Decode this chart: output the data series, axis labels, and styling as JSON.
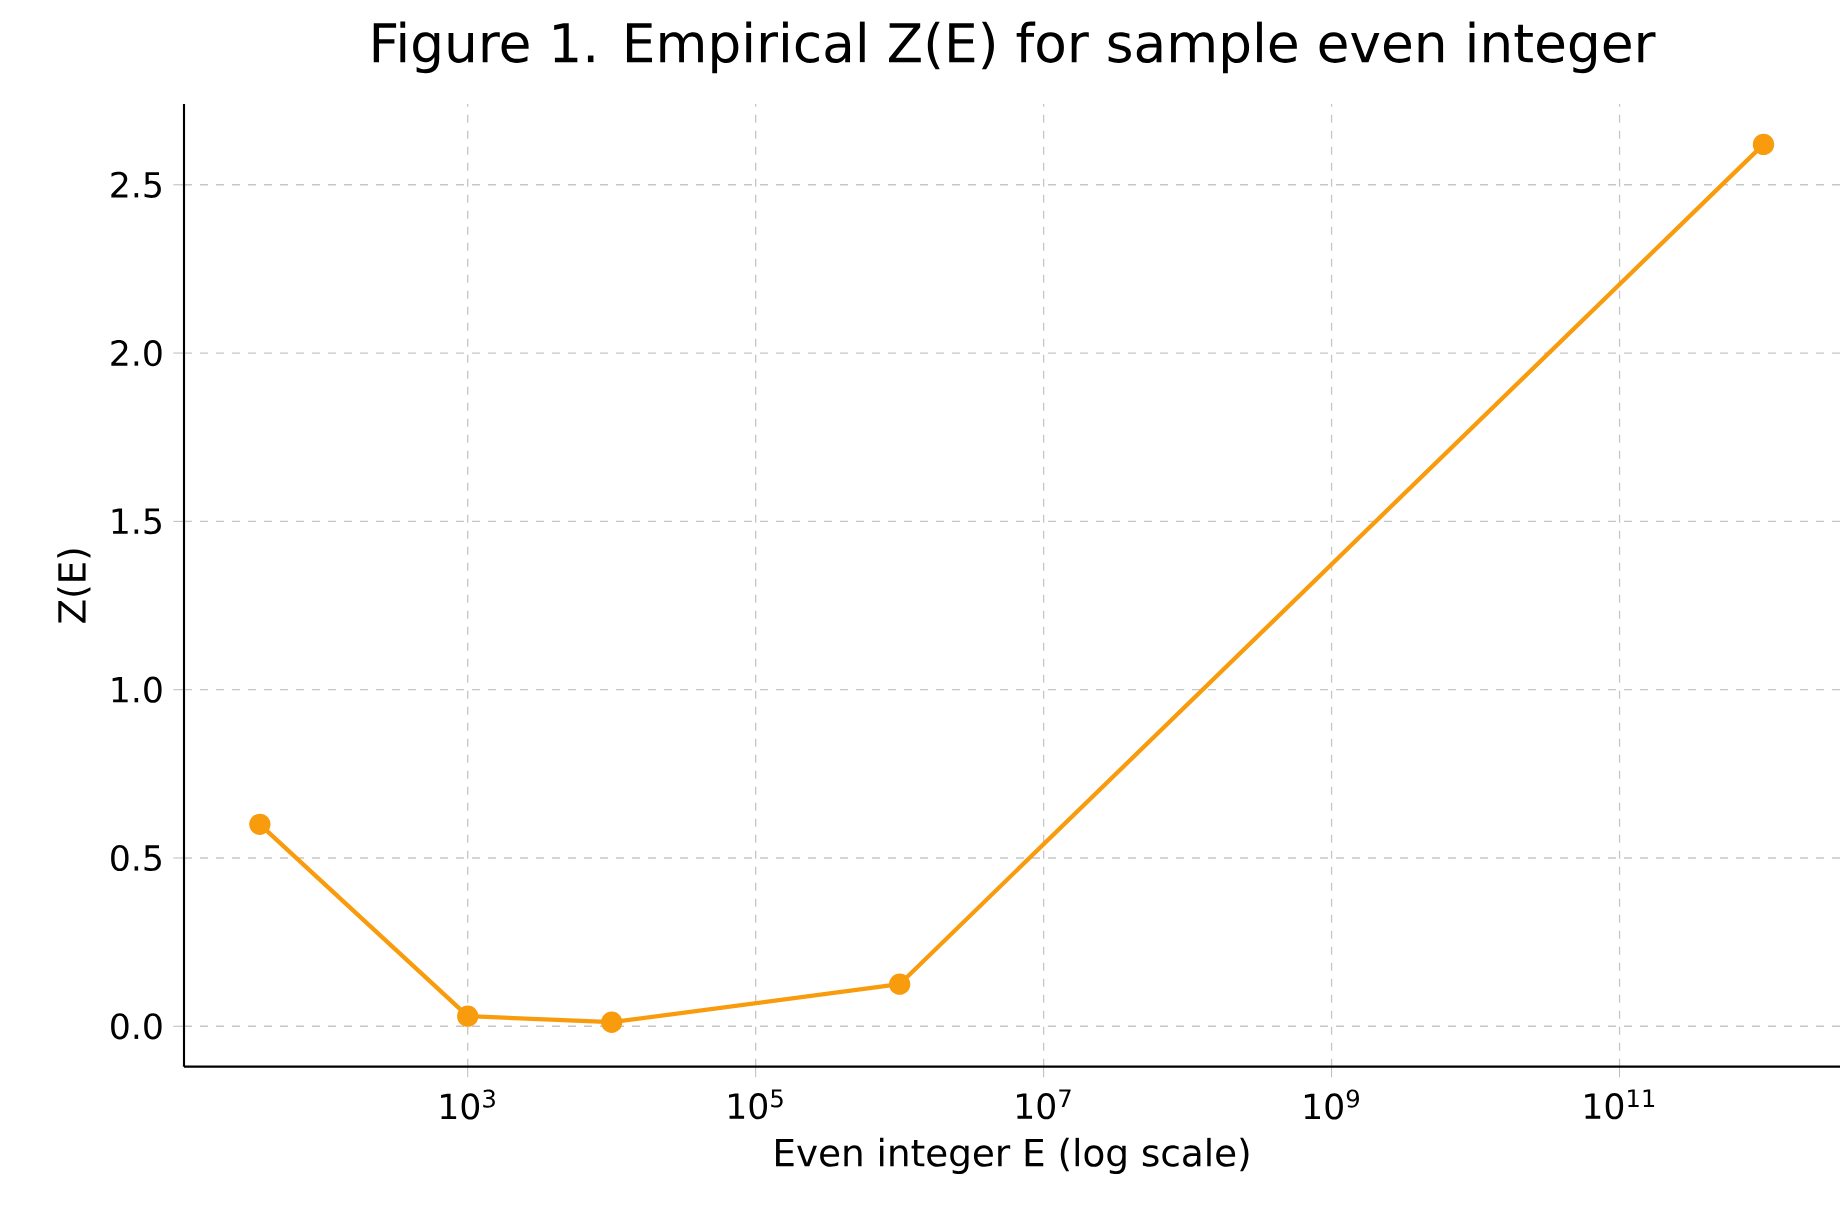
{
  "chart_data": {
    "type": "line",
    "title": "Figure 1. Empirical Z(E) for sample even integer",
    "xlabel": "Even integer E (log scale)",
    "ylabel": "Z(E)",
    "x": [
      36,
      1000,
      10000,
      1000000,
      1000000000000
    ],
    "values": [
      0.6,
      0.03,
      0.012,
      0.125,
      2.62
    ],
    "color": "#f89c0e",
    "log": "x",
    "grid": true,
    "marker": "circle",
    "line_style": "solid",
    "xlim": [
      10.7,
      3400000000000
    ],
    "ylim": [
      -0.12,
      2.74
    ],
    "xticks": [
      {
        "value": 1000,
        "label": "10$^{3}$"
      },
      {
        "value": 100000,
        "label": "10$^{5}$"
      },
      {
        "value": 10000000,
        "label": "10$^{7}$"
      },
      {
        "value": 1000000000,
        "label": "10$^{9}$"
      },
      {
        "value": 100000000000,
        "label": "10$^{11}$"
      }
    ],
    "yticks": [
      {
        "value": 0,
        "label": "0.0"
      },
      {
        "value": 0.5,
        "label": "0.5"
      },
      {
        "value": 1,
        "label": "1.0"
      },
      {
        "value": 1.5,
        "label": "1.5"
      },
      {
        "value": 2,
        "label": "2.0"
      },
      {
        "value": 2.5,
        "label": "2.5"
      }
    ]
  }
}
